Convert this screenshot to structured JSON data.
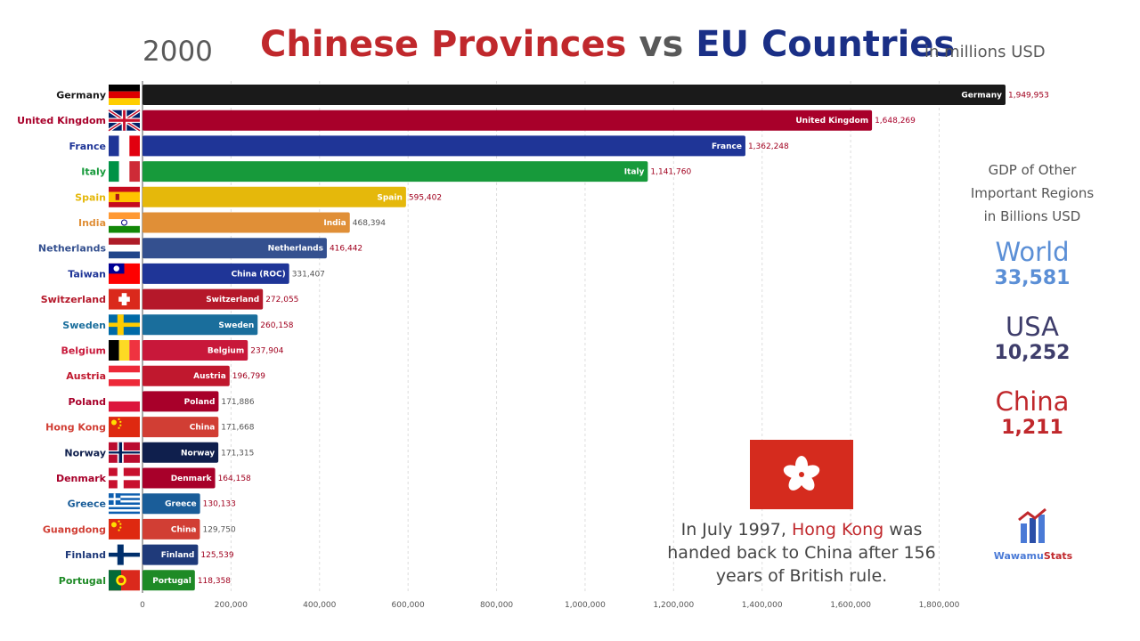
{
  "header": {
    "year": "2000",
    "title_part1": "Chinese Provinces",
    "title_vs": "vs",
    "title_part2": "EU Countries",
    "unit": "in millions USD"
  },
  "side_panel": {
    "heading_line1": "GDP of Other",
    "heading_line2": "Important Regions",
    "heading_line3": "in Billions USD",
    "regions": [
      {
        "name": "World",
        "value": "33,581",
        "color": "#5b8fd6"
      },
      {
        "name": "USA",
        "value": "10,252",
        "color": "#3e3d6b"
      },
      {
        "name": "China",
        "value": "1,211",
        "color": "#c0282c"
      }
    ]
  },
  "annotation": {
    "part1": "In July 1997,",
    "highlight": "Hong Kong",
    "part2": "was handed back to China after 156 years of British rule."
  },
  "logo": {
    "part1": "Wawamu",
    "part2": "Stats"
  },
  "chart_data": {
    "type": "bar",
    "orientation": "horizontal",
    "xlim": [
      0,
      1949953
    ],
    "xticks": [
      0,
      200000,
      400000,
      600000,
      800000,
      1000000,
      1200000,
      1400000,
      1600000,
      1800000
    ],
    "xtick_labels": [
      "0",
      "200,000",
      "400,000",
      "600,000",
      "800,000",
      "1,000,000",
      "1,200,000",
      "1,400,000",
      "1,600,000",
      "1,800,000"
    ],
    "grid": true,
    "bars": [
      {
        "label": "Germany",
        "inner": "Germany",
        "value": 1949953,
        "value_label": "1,949,953",
        "color": "#1a1a1a",
        "label_color": "#1a1a1a",
        "value_color": "#a0001e",
        "flag": "germany"
      },
      {
        "label": "United Kingdom",
        "inner": "United Kingdom",
        "value": 1648269,
        "value_label": "1,648,269",
        "color": "#a8002a",
        "label_color": "#a8002a",
        "value_color": "#a8002a",
        "flag": "uk"
      },
      {
        "label": "France",
        "inner": "France",
        "value": 1362248,
        "value_label": "1,362,248",
        "color": "#1f3597",
        "label_color": "#1f3597",
        "value_color": "#a0001e",
        "flag": "france"
      },
      {
        "label": "Italy",
        "inner": "Italy",
        "value": 1141760,
        "value_label": "1,141,760",
        "color": "#179a3b",
        "label_color": "#179a3b",
        "value_color": "#a0001e",
        "flag": "italy"
      },
      {
        "label": "Spain",
        "inner": "Spain",
        "value": 595402,
        "value_label": "595,402",
        "color": "#e5b80b",
        "label_color": "#e5b80b",
        "value_color": "#a0001e",
        "flag": "spain"
      },
      {
        "label": "India",
        "inner": "India",
        "value": 468394,
        "value_label": "468,394",
        "color": "#e08f37",
        "label_color": "#e08f37",
        "value_color": "#555555",
        "flag": "india"
      },
      {
        "label": "Netherlands",
        "inner": "Netherlands",
        "value": 416442,
        "value_label": "416,442",
        "color": "#34508f",
        "label_color": "#34508f",
        "value_color": "#a0001e",
        "flag": "netherlands"
      },
      {
        "label": "Taiwan",
        "inner": "China (ROC)",
        "value": 331407,
        "value_label": "331,407",
        "color": "#1f3597",
        "label_color": "#1f3597",
        "value_color": "#555555",
        "flag": "taiwan"
      },
      {
        "label": "Switzerland",
        "inner": "Switzerland",
        "value": 272055,
        "value_label": "272,055",
        "color": "#b5182a",
        "label_color": "#b5182a",
        "value_color": "#a0001e",
        "flag": "switzerland"
      },
      {
        "label": "Sweden",
        "inner": "Sweden",
        "value": 260158,
        "value_label": "260,158",
        "color": "#1a6e9c",
        "label_color": "#1a6e9c",
        "value_color": "#a0001e",
        "flag": "sweden"
      },
      {
        "label": "Belgium",
        "inner": "Belgium",
        "value": 237904,
        "value_label": "237,904",
        "color": "#c8183a",
        "label_color": "#c8183a",
        "value_color": "#a0001e",
        "flag": "belgium"
      },
      {
        "label": "Austria",
        "inner": "Austria",
        "value": 196799,
        "value_label": "196,799",
        "color": "#c0182e",
        "label_color": "#c0182e",
        "value_color": "#a0001e",
        "flag": "austria"
      },
      {
        "label": "Poland",
        "inner": "Poland",
        "value": 171886,
        "value_label": "171,886",
        "color": "#a8002a",
        "label_color": "#a8002a",
        "value_color": "#555555",
        "flag": "poland"
      },
      {
        "label": "Hong Kong",
        "inner": "China",
        "value": 171668,
        "value_label": "171,668",
        "color": "#d13e34",
        "label_color": "#d13e34",
        "value_color": "#555555",
        "flag": "china"
      },
      {
        "label": "Norway",
        "inner": "Norway",
        "value": 171315,
        "value_label": "171,315",
        "color": "#0f1f4d",
        "label_color": "#0f1f4d",
        "value_color": "#555555",
        "flag": "norway"
      },
      {
        "label": "Denmark",
        "inner": "Denmark",
        "value": 164158,
        "value_label": "164,158",
        "color": "#a8002a",
        "label_color": "#a8002a",
        "value_color": "#a0001e",
        "flag": "denmark"
      },
      {
        "label": "Greece",
        "inner": "Greece",
        "value": 130133,
        "value_label": "130,133",
        "color": "#1a5d99",
        "label_color": "#1a5d99",
        "value_color": "#a0001e",
        "flag": "greece"
      },
      {
        "label": "Guangdong",
        "inner": "China",
        "value": 129750,
        "value_label": "129,750",
        "color": "#d13e34",
        "label_color": "#d13e34",
        "value_color": "#555555",
        "flag": "china"
      },
      {
        "label": "Finland",
        "inner": "Finland",
        "value": 125539,
        "value_label": "125,539",
        "color": "#1f3a7a",
        "label_color": "#1f3a7a",
        "value_color": "#a0001e",
        "flag": "finland"
      },
      {
        "label": "Portugal",
        "inner": "Portugal",
        "value": 118358,
        "value_label": "118,358",
        "color": "#1e8a26",
        "label_color": "#1e8a26",
        "value_color": "#a0001e",
        "flag": "portugal"
      }
    ]
  }
}
